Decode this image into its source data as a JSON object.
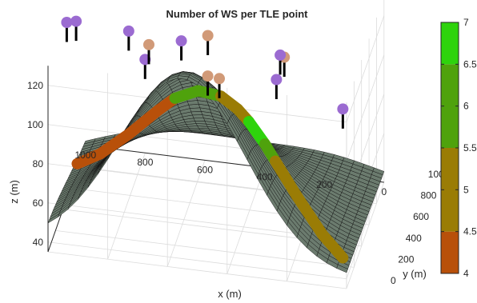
{
  "chart_data": {
    "type": "surface3d",
    "title": "Number of WS per TLE point",
    "xlabel": "x (m)",
    "ylabel": "y (m)",
    "zlabel": "z (m)",
    "xlim": [
      0,
      1000
    ],
    "ylim": [
      0,
      1000
    ],
    "zlim": [
      35,
      130
    ],
    "x_ticks": [
      "1000",
      "800",
      "600",
      "400",
      "200",
      "0"
    ],
    "y_ticks": [
      "0",
      "200",
      "400",
      "600",
      "800",
      "1000"
    ],
    "z_ticks": [
      "40",
      "60",
      "80",
      "100",
      "120"
    ],
    "grid": true,
    "surface_color": "#6b7b6e",
    "colorbar": {
      "ticks": [
        "4",
        "4.5",
        "5",
        "5.5",
        "6",
        "6.5",
        "7"
      ],
      "levels": [
        {
          "from": 4,
          "to": 4.5,
          "color": "#b8500a"
        },
        {
          "from": 4.5,
          "to": 5.5,
          "color": "#9a7c05"
        },
        {
          "from": 5.5,
          "to": 6.5,
          "color": "#4fa20c"
        },
        {
          "from": 6.5,
          "to": 7,
          "color": "#2ed30c"
        }
      ]
    },
    "tle_path": [
      {
        "x": 980,
        "y": 620,
        "ws": 4
      },
      {
        "x": 900,
        "y": 590,
        "ws": 4
      },
      {
        "x": 800,
        "y": 560,
        "ws": 4
      },
      {
        "x": 700,
        "y": 540,
        "ws": 4
      },
      {
        "x": 640,
        "y": 520,
        "ws": 6
      },
      {
        "x": 560,
        "y": 500,
        "ws": 6
      },
      {
        "x": 480,
        "y": 470,
        "ws": 5
      },
      {
        "x": 420,
        "y": 440,
        "ws": 5
      },
      {
        "x": 380,
        "y": 420,
        "ws": 7
      },
      {
        "x": 320,
        "y": 370,
        "ws": 6
      },
      {
        "x": 280,
        "y": 330,
        "ws": 5
      },
      {
        "x": 200,
        "y": 260,
        "ws": 5
      },
      {
        "x": 100,
        "y": 150,
        "ws": 5
      },
      {
        "x": 20,
        "y": 60,
        "ws": 5
      }
    ],
    "wind_stations": [
      {
        "x": 1000,
        "y": 500,
        "z": 125,
        "color": "#9b6bd1"
      },
      {
        "x": 700,
        "y": 200,
        "z": 128,
        "color": "#9b6bd1"
      },
      {
        "x": 480,
        "y": 120,
        "z": 128,
        "color": "#d19a78"
      },
      {
        "x": 440,
        "y": 110,
        "z": 128,
        "color": "#d19a78"
      },
      {
        "x": 260,
        "y": 200,
        "z": 126,
        "color": "#9b6bd1"
      },
      {
        "x": 1000,
        "y": 750,
        "z": 112,
        "color": "#9b6bd1"
      },
      {
        "x": 820,
        "y": 720,
        "z": 112,
        "color": "#9b6bd1"
      },
      {
        "x": 740,
        "y": 620,
        "z": 112,
        "color": "#d19a78"
      },
      {
        "x": 640,
        "y": 690,
        "z": 112,
        "color": "#9b6bd1"
      },
      {
        "x": 530,
        "y": 520,
        "z": 126,
        "color": "#d19a78"
      },
      {
        "x": 260,
        "y": 410,
        "z": 126,
        "color": "#d19a78"
      },
      {
        "x": 280,
        "y": 460,
        "z": 124,
        "color": "#9b6bd1"
      },
      {
        "x": 40,
        "y": 220,
        "z": 114,
        "color": "#9b6bd1"
      }
    ]
  }
}
